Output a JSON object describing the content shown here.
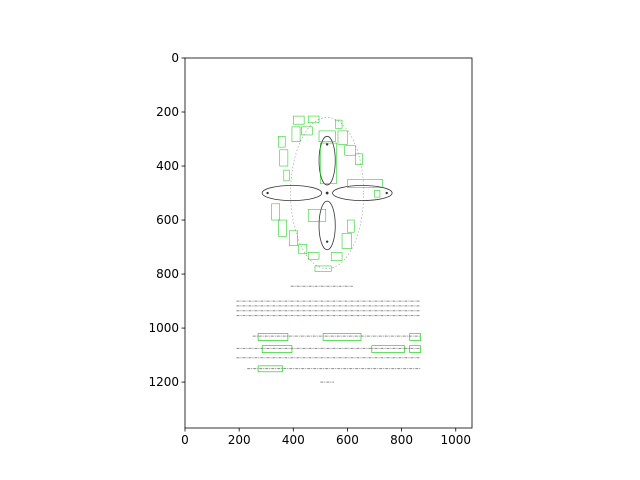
{
  "chart_data": {
    "type": "image",
    "title": "",
    "xlabel": "",
    "ylabel": "",
    "xlim": [
      0,
      1060
    ],
    "ylim": [
      1370,
      0
    ],
    "y_inverted": true,
    "grid": false,
    "xticks": [
      0,
      200,
      400,
      600,
      800,
      1000
    ],
    "yticks": [
      0,
      200,
      400,
      600,
      800,
      1000,
      1200
    ],
    "image_extent": [
      0,
      1060,
      1370,
      0
    ],
    "image_content": {
      "figure_center": [
        525,
        500
      ],
      "loops": [
        {
          "name": "top",
          "center": [
            525,
            380
          ],
          "radii": [
            30,
            90
          ]
        },
        {
          "name": "bottom",
          "center": [
            525,
            620
          ],
          "radii": [
            30,
            90
          ]
        },
        {
          "name": "left",
          "center": [
            395,
            500
          ],
          "radii": [
            110,
            28
          ]
        },
        {
          "name": "right",
          "center": [
            655,
            500
          ],
          "radii": [
            110,
            28
          ]
        }
      ],
      "outer_ring": {
        "center": [
          525,
          500
        ],
        "radii": [
          135,
          280
        ]
      },
      "text_blocks": [
        {
          "y": 845,
          "x": [
            390,
            620
          ],
          "lines": 1
        },
        {
          "y": 900,
          "x": [
            190,
            870
          ],
          "lines": 4
        },
        {
          "y": 1030,
          "x": [
            250,
            870
          ],
          "lines": 1
        },
        {
          "y": 1075,
          "x": [
            190,
            870
          ],
          "lines": 1
        },
        {
          "y": 1110,
          "x": [
            190,
            870
          ],
          "lines": 1
        },
        {
          "y": 1150,
          "x": [
            230,
            870
          ],
          "lines": 1
        },
        {
          "y": 1200,
          "x": [
            500,
            550
          ],
          "lines": 1
        }
      ]
    },
    "highlight_color": "#00c800",
    "ink_color": "#333333"
  }
}
